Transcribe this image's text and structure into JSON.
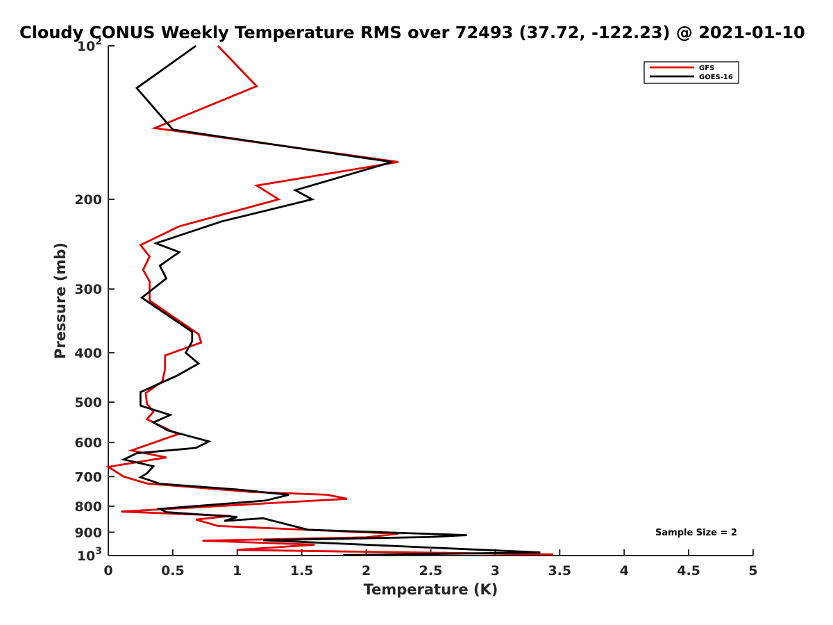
{
  "chart_data": {
    "type": "line",
    "title": "Cloudy CONUS Weekly Temperature RMS over 72493 (37.72, -122.23) @ 2021-01-10",
    "xlabel": "Temperature (K)",
    "ylabel": "Pressure (mb)",
    "xlim": [
      0,
      5
    ],
    "ylim": [
      100,
      1000
    ],
    "yscale": "log",
    "y_reversed": true,
    "x_ticks": [
      "0",
      "0.5",
      "1",
      "1.5",
      "2",
      "2.5",
      "3",
      "3.5",
      "4",
      "4.5",
      "5"
    ],
    "y_ticks": [
      {
        "value": 100,
        "base": "10",
        "exp": "2"
      },
      {
        "value": 200,
        "label": "200"
      },
      {
        "value": 300,
        "label": "300"
      },
      {
        "value": 400,
        "label": "400"
      },
      {
        "value": 500,
        "label": "500"
      },
      {
        "value": 600,
        "label": "600"
      },
      {
        "value": 700,
        "label": "700"
      },
      {
        "value": 800,
        "label": "800"
      },
      {
        "value": 900,
        "label": "900"
      },
      {
        "value": 1000,
        "base": "10",
        "exp": "3"
      }
    ],
    "legend": {
      "placement": "top-right"
    },
    "annotation": "Sample Size = 2",
    "series": [
      {
        "name": "GFS",
        "color": "#e00000",
        "points": [
          [
            0.85,
            100
          ],
          [
            1.15,
            120
          ],
          [
            0.36,
            145
          ],
          [
            2.25,
            169
          ],
          [
            1.15,
            188
          ],
          [
            1.32,
            200
          ],
          [
            0.55,
            226
          ],
          [
            0.25,
            246
          ],
          [
            0.32,
            259
          ],
          [
            0.27,
            275
          ],
          [
            0.32,
            290
          ],
          [
            0.32,
            316
          ],
          [
            0.7,
            368
          ],
          [
            0.72,
            382
          ],
          [
            0.44,
            405
          ],
          [
            0.44,
            430
          ],
          [
            0.42,
            455
          ],
          [
            0.29,
            480
          ],
          [
            0.3,
            504
          ],
          [
            0.35,
            522
          ],
          [
            0.3,
            540
          ],
          [
            0.54,
            578
          ],
          [
            0.18,
            622
          ],
          [
            0.45,
            642
          ],
          [
            0.0,
            670
          ],
          [
            0.12,
            700
          ],
          [
            0.3,
            722
          ],
          [
            1.1,
            750
          ],
          [
            1.7,
            760
          ],
          [
            1.85,
            774
          ],
          [
            0.1,
            820
          ],
          [
            0.95,
            836
          ],
          [
            0.68,
            850
          ],
          [
            0.85,
            875
          ],
          [
            2.25,
            906
          ],
          [
            2.0,
            921
          ],
          [
            0.73,
            935
          ],
          [
            1.6,
            952
          ],
          [
            1.0,
            975
          ],
          [
            3.45,
            995
          ]
        ]
      },
      {
        "name": "GOES-16",
        "color": "#000000",
        "points": [
          [
            0.68,
            100
          ],
          [
            0.22,
            121
          ],
          [
            0.5,
            146
          ],
          [
            2.2,
            169
          ],
          [
            1.45,
            192
          ],
          [
            1.58,
            200
          ],
          [
            0.88,
            221
          ],
          [
            0.37,
            244
          ],
          [
            0.55,
            254
          ],
          [
            0.4,
            270
          ],
          [
            0.45,
            286
          ],
          [
            0.26,
            312
          ],
          [
            0.65,
            364
          ],
          [
            0.65,
            380
          ],
          [
            0.6,
            400
          ],
          [
            0.7,
            420
          ],
          [
            0.53,
            444
          ],
          [
            0.25,
            478
          ],
          [
            0.25,
            508
          ],
          [
            0.48,
            530
          ],
          [
            0.35,
            548
          ],
          [
            0.46,
            568
          ],
          [
            0.78,
            597
          ],
          [
            0.68,
            615
          ],
          [
            0.22,
            630
          ],
          [
            0.12,
            648
          ],
          [
            0.35,
            668
          ],
          [
            0.3,
            690
          ],
          [
            0.25,
            702
          ],
          [
            0.4,
            723
          ],
          [
            1.0,
            742
          ],
          [
            1.4,
            760
          ],
          [
            1.22,
            780
          ],
          [
            0.4,
            810
          ],
          [
            0.45,
            822
          ],
          [
            1.0,
            840
          ],
          [
            0.9,
            855
          ],
          [
            1.2,
            845
          ],
          [
            1.55,
            890
          ],
          [
            2.78,
            912
          ],
          [
            2.48,
            920
          ],
          [
            1.2,
            933
          ],
          [
            3.35,
            986
          ],
          [
            1.82,
            998
          ]
        ]
      }
    ]
  }
}
